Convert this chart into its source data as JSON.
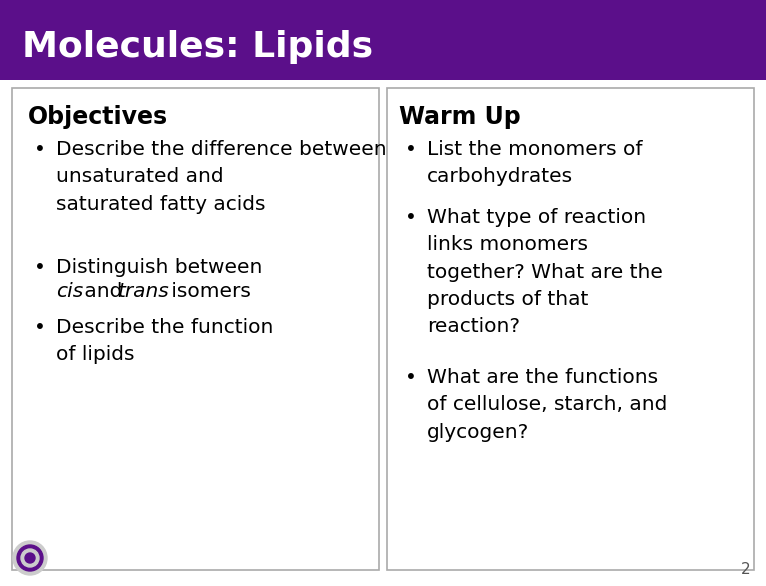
{
  "title": "Molecules: Lipids",
  "title_bg": "#5b0f8a",
  "title_color": "#ffffff",
  "slide_bg": "#ffffff",
  "border_color": "#aaaaaa",
  "objectives_header": "Objectives",
  "warmup_header": "Warm Up",
  "warmup_bullets": [
    "List the monomers of\ncarbohydrates",
    "What type of reaction\nlinks monomers\ntogether? What are the\nproducts of that\nreaction?",
    "What are the functions\nof cellulose, starch, and\nglycogen?"
  ],
  "page_number": "2",
  "bullet": "•"
}
